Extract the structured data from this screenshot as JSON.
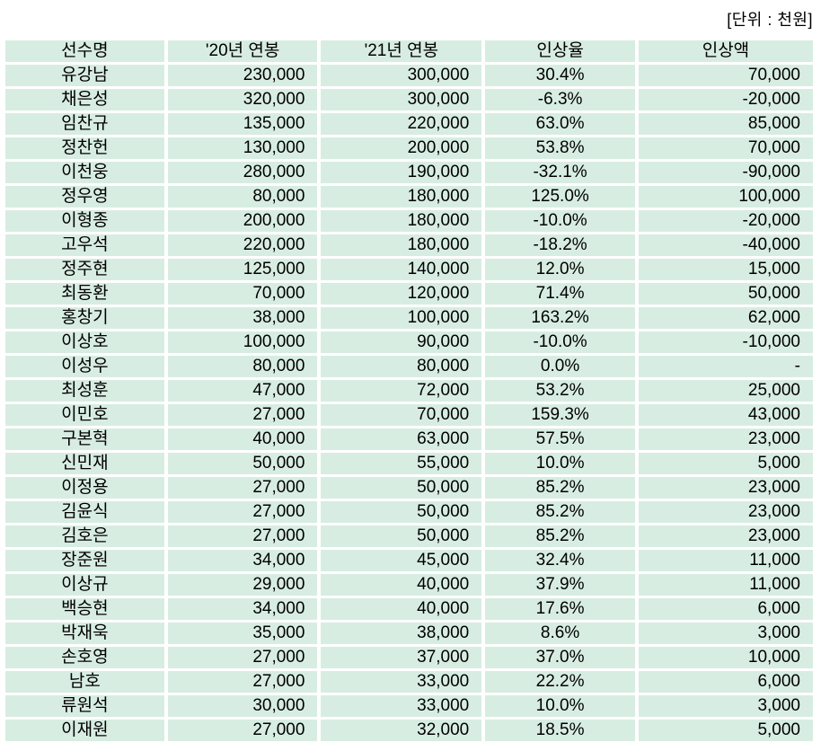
{
  "unit_label": "[단위 : 천원]",
  "colors": {
    "cell_background": "#d8ede2",
    "separator": "#ffffff",
    "text": "#000000"
  },
  "chart_data": {
    "type": "table",
    "title": "",
    "unit": "[단위 : 천원]",
    "columns": [
      "선수명",
      "'20년 연봉",
      "'21년 연봉",
      "인상율",
      "인상액"
    ],
    "rows": [
      [
        "유강남",
        "230,000",
        "300,000",
        "30.4%",
        "70,000"
      ],
      [
        "채은성",
        "320,000",
        "300,000",
        "-6.3%",
        "-20,000"
      ],
      [
        "임찬규",
        "135,000",
        "220,000",
        "63.0%",
        "85,000"
      ],
      [
        "정찬헌",
        "130,000",
        "200,000",
        "53.8%",
        "70,000"
      ],
      [
        "이천웅",
        "280,000",
        "190,000",
        "-32.1%",
        "-90,000"
      ],
      [
        "정우영",
        "80,000",
        "180,000",
        "125.0%",
        "100,000"
      ],
      [
        "이형종",
        "200,000",
        "180,000",
        "-10.0%",
        "-20,000"
      ],
      [
        "고우석",
        "220,000",
        "180,000",
        "-18.2%",
        "-40,000"
      ],
      [
        "정주현",
        "125,000",
        "140,000",
        "12.0%",
        "15,000"
      ],
      [
        "최동환",
        "70,000",
        "120,000",
        "71.4%",
        "50,000"
      ],
      [
        "홍창기",
        "38,000",
        "100,000",
        "163.2%",
        "62,000"
      ],
      [
        "이상호",
        "100,000",
        "90,000",
        "-10.0%",
        "-10,000"
      ],
      [
        "이성우",
        "80,000",
        "80,000",
        "0.0%",
        "-"
      ],
      [
        "최성훈",
        "47,000",
        "72,000",
        "53.2%",
        "25,000"
      ],
      [
        "이민호",
        "27,000",
        "70,000",
        "159.3%",
        "43,000"
      ],
      [
        "구본혁",
        "40,000",
        "63,000",
        "57.5%",
        "23,000"
      ],
      [
        "신민재",
        "50,000",
        "55,000",
        "10.0%",
        "5,000"
      ],
      [
        "이정용",
        "27,000",
        "50,000",
        "85.2%",
        "23,000"
      ],
      [
        "김윤식",
        "27,000",
        "50,000",
        "85.2%",
        "23,000"
      ],
      [
        "김호은",
        "27,000",
        "50,000",
        "85.2%",
        "23,000"
      ],
      [
        "장준원",
        "34,000",
        "45,000",
        "32.4%",
        "11,000"
      ],
      [
        "이상규",
        "29,000",
        "40,000",
        "37.9%",
        "11,000"
      ],
      [
        "백승현",
        "34,000",
        "40,000",
        "17.6%",
        "6,000"
      ],
      [
        "박재욱",
        "35,000",
        "38,000",
        "8.6%",
        "3,000"
      ],
      [
        "손호영",
        "27,000",
        "37,000",
        "37.0%",
        "10,000"
      ],
      [
        "남호",
        "27,000",
        "33,000",
        "22.2%",
        "6,000"
      ],
      [
        "류원석",
        "30,000",
        "33,000",
        "10.0%",
        "3,000"
      ],
      [
        "이재원",
        "27,000",
        "32,000",
        "18.5%",
        "5,000"
      ]
    ]
  }
}
